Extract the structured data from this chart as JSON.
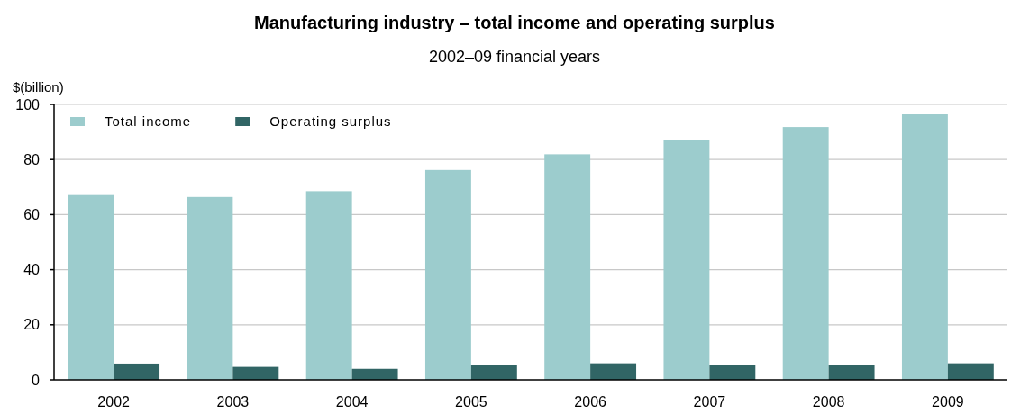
{
  "chart_data": {
    "type": "bar",
    "title": "Manufacturing industry – total income and operating surplus",
    "subtitle": "2002–09 financial years",
    "ylabel": "$(billion)",
    "categories": [
      "2002",
      "2003",
      "2004",
      "2005",
      "2006",
      "2007",
      "2008",
      "2009"
    ],
    "series": [
      {
        "name": "Total income",
        "color": "#9ccccd",
        "values": [
          67.1,
          66.4,
          68.5,
          76.2,
          81.9,
          87.2,
          91.8,
          96.4
        ]
      },
      {
        "name": "Operating surplus",
        "color": "#316565",
        "values": [
          5.9,
          4.7,
          4.0,
          5.4,
          6.0,
          5.4,
          5.4,
          6.0
        ]
      }
    ],
    "ylim": [
      0,
      100
    ],
    "yticks": [
      0,
      20,
      40,
      60,
      80,
      100
    ],
    "grid": "y",
    "legend": "top left"
  }
}
